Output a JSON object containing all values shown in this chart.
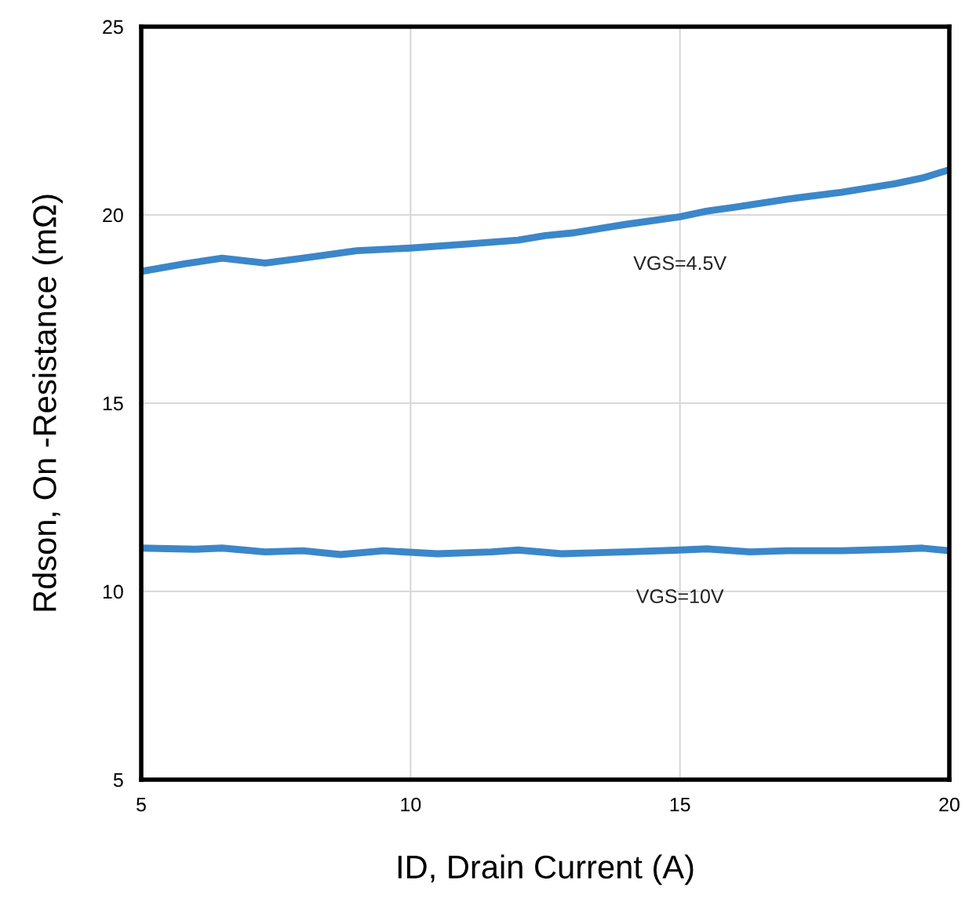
{
  "chart_data": {
    "type": "line",
    "xlabel": "ID, Drain Current (A)",
    "ylabel": "Rdson, On -Resistance (mΩ)",
    "series": [
      {
        "name": "VGS=4.5V",
        "color": "#3b87c9",
        "x": [
          5,
          5.8,
          6.5,
          7.3,
          8,
          9,
          10,
          11,
          12,
          12.5,
          13,
          14,
          15,
          15.5,
          16,
          17,
          18,
          19,
          19.5,
          20
        ],
        "values": [
          18.5,
          18.7,
          18.85,
          18.72,
          18.85,
          19.05,
          19.12,
          19.22,
          19.33,
          19.45,
          19.52,
          19.75,
          19.95,
          20.1,
          20.2,
          20.42,
          20.6,
          20.83,
          20.98,
          21.2
        ]
      },
      {
        "name": "VGS=10V",
        "color": "#3b87c9",
        "x": [
          5,
          6,
          6.5,
          7.3,
          8,
          8.7,
          9.5,
          10.5,
          11.5,
          12,
          12.8,
          14,
          15,
          15.5,
          16.3,
          17,
          18,
          19,
          19.5,
          20
        ],
        "values": [
          11.15,
          11.12,
          11.15,
          11.05,
          11.08,
          10.98,
          11.08,
          11.0,
          11.05,
          11.1,
          11.0,
          11.05,
          11.1,
          11.13,
          11.05,
          11.08,
          11.08,
          11.12,
          11.15,
          11.08
        ]
      }
    ],
    "xlim": [
      5,
      20
    ],
    "xticks": [
      5,
      10,
      15,
      20
    ],
    "ylim": [
      5,
      25
    ],
    "yticks": [
      5,
      10,
      15,
      20,
      25
    ],
    "grid": true,
    "line_style": "solid",
    "marker": "none"
  }
}
